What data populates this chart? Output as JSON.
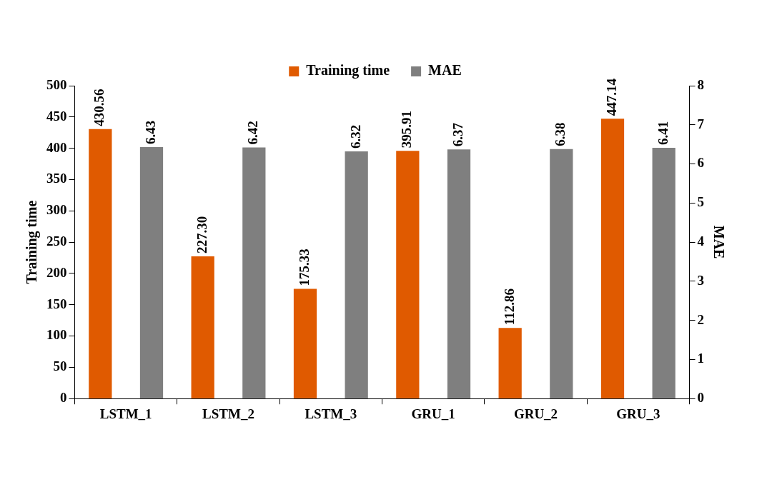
{
  "chart_data": {
    "type": "bar",
    "categories": [
      "LSTM_1",
      "LSTM_2",
      "LSTM_3",
      "GRU_1",
      "GRU_2",
      "GRU_3"
    ],
    "ylabel": "Training time",
    "y2label": "MAE",
    "series": [
      {
        "name": "Training time",
        "color": "#e05a00",
        "values": [
          430.56,
          227.3,
          175.33,
          395.91,
          112.86,
          447.14
        ],
        "value_labels": [
          "430.56",
          "227.30",
          "175.33",
          "395.91",
          "112.86",
          "447.14"
        ]
      },
      {
        "name": "MAE",
        "color": "#7f7f7f",
        "axis": "y2",
        "values": [
          6.43,
          6.42,
          6.32,
          6.37,
          6.38,
          6.41
        ],
        "value_labels": [
          "6.43",
          "6.42",
          "6.32",
          "6.37",
          "6.38",
          "6.41"
        ]
      }
    ],
    "ylim": [
      0,
      500
    ],
    "yticks": [
      0,
      50,
      100,
      150,
      200,
      250,
      300,
      350,
      400,
      450,
      500
    ],
    "y2lim": [
      0,
      8
    ],
    "y2ticks": [
      0,
      1,
      2,
      3,
      4,
      5,
      6,
      7,
      8
    ],
    "grid": false,
    "legend": "top"
  }
}
